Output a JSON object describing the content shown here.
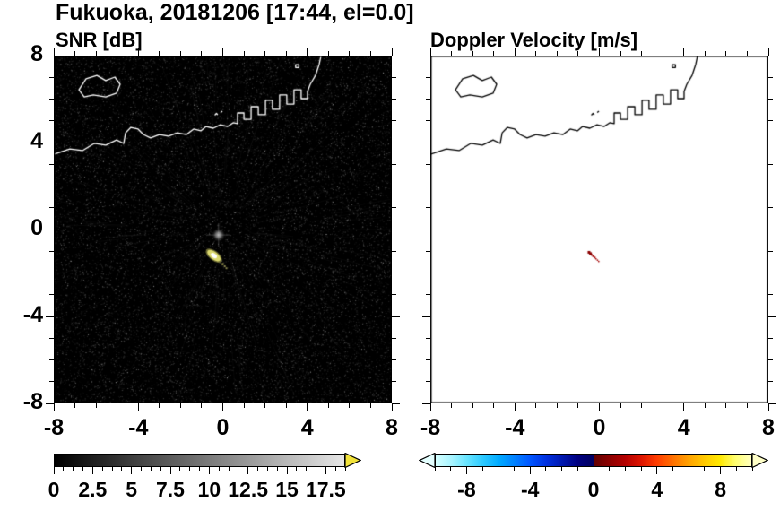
{
  "title": "Fukuoka, 20181206 [17:44, el=0.0]",
  "panels": {
    "snr": {
      "title": "SNR [dB]"
    },
    "velocity": {
      "title": "Doppler Velocity [m/s]"
    }
  },
  "axes": {
    "xlim": [
      -8,
      8
    ],
    "ylim": [
      -8,
      8
    ],
    "xtick_values": [
      -8,
      -4,
      0,
      4,
      8
    ],
    "xtick_labels": [
      "-8",
      "-4",
      "0",
      "4",
      "8"
    ],
    "ytick_values": [
      -8,
      -4,
      0,
      4,
      8
    ],
    "ytick_labels": [
      "-8",
      "-4",
      "0",
      "4",
      "8"
    ],
    "minor_step": 1
  },
  "colorbars": {
    "snr": {
      "min": 0,
      "max": 17.5,
      "tick_values": [
        0,
        2.5,
        5,
        7.5,
        10,
        12.5,
        15,
        17.5
      ],
      "tick_labels": [
        "0",
        "2.5",
        "5",
        "7.5",
        "10",
        "12.5",
        "15",
        "17.5"
      ],
      "minor_step": 0.625,
      "colors": [
        [
          "0%",
          "#000000"
        ],
        [
          "100%",
          "#e6e6e6"
        ]
      ],
      "arrow_right_color": "#f2e33a"
    },
    "velocity": {
      "min": -10,
      "max": 10,
      "tick_values": [
        -8,
        -4,
        0,
        4,
        8
      ],
      "tick_labels": [
        "-8",
        "-4",
        "0",
        "4",
        "8"
      ],
      "minor_step": 1,
      "colors": [
        [
          "0%",
          "#d4ffff"
        ],
        [
          "5%",
          "#a8f4ff"
        ],
        [
          "10%",
          "#66e4ff"
        ],
        [
          "15%",
          "#2cc9ff"
        ],
        [
          "20%",
          "#00aaff"
        ],
        [
          "25%",
          "#0080ff"
        ],
        [
          "30%",
          "#0055ff"
        ],
        [
          "35%",
          "#0030e0"
        ],
        [
          "40%",
          "#0018b0"
        ],
        [
          "45%",
          "#000080"
        ],
        [
          "50%",
          "#000060"
        ],
        [
          "50%",
          "#600000"
        ],
        [
          "55%",
          "#8b0000"
        ],
        [
          "60%",
          "#b40000"
        ],
        [
          "65%",
          "#dc1400"
        ],
        [
          "70%",
          "#ff3c00"
        ],
        [
          "75%",
          "#ff6e00"
        ],
        [
          "80%",
          "#ffa000"
        ],
        [
          "85%",
          "#ffc800"
        ],
        [
          "90%",
          "#ffe800"
        ],
        [
          "95%",
          "#ffff70"
        ],
        [
          "100%",
          "#ffffc0"
        ]
      ],
      "arrow_left_color": "#e4ffff",
      "arrow_right_color": "#ffffc8"
    }
  },
  "coastline": {
    "segments": [
      {
        "name": "mainland",
        "closed": false,
        "points": [
          [
            -8.0,
            3.46
          ],
          [
            -7.24,
            3.71
          ],
          [
            -6.64,
            3.63
          ],
          [
            -6.09,
            3.96
          ],
          [
            -5.54,
            3.88
          ],
          [
            -5.03,
            4.12
          ],
          [
            -4.69,
            3.96
          ],
          [
            -4.6,
            4.45
          ],
          [
            -4.35,
            4.7
          ],
          [
            -4.01,
            4.62
          ],
          [
            -3.76,
            4.37
          ],
          [
            -3.42,
            4.21
          ],
          [
            -3.0,
            4.37
          ],
          [
            -2.57,
            4.29
          ],
          [
            -2.15,
            4.45
          ],
          [
            -1.72,
            4.37
          ],
          [
            -1.38,
            4.62
          ],
          [
            -1.04,
            4.54
          ],
          [
            -0.79,
            4.74
          ],
          [
            -0.45,
            4.66
          ],
          [
            -0.11,
            4.82
          ],
          [
            0.23,
            4.74
          ],
          [
            0.49,
            4.91
          ],
          [
            0.7,
            4.87
          ],
          [
            0.7,
            5.36
          ],
          [
            1.0,
            5.36
          ],
          [
            1.0,
            5.07
          ],
          [
            1.34,
            5.07
          ],
          [
            1.34,
            5.65
          ],
          [
            1.68,
            5.65
          ],
          [
            1.68,
            5.28
          ],
          [
            2.02,
            5.28
          ],
          [
            2.02,
            5.94
          ],
          [
            2.35,
            5.94
          ],
          [
            2.35,
            5.53
          ],
          [
            2.69,
            5.53
          ],
          [
            2.69,
            6.19
          ],
          [
            3.03,
            6.19
          ],
          [
            3.03,
            5.77
          ],
          [
            3.37,
            5.77
          ],
          [
            3.37,
            6.43
          ],
          [
            3.71,
            6.43
          ],
          [
            3.71,
            6.02
          ],
          [
            4.01,
            6.02
          ],
          [
            4.01,
            6.35
          ],
          [
            4.14,
            6.68
          ],
          [
            4.39,
            7.09
          ],
          [
            4.56,
            7.59
          ],
          [
            4.65,
            8.0
          ]
        ]
      },
      {
        "name": "island-northwest",
        "closed": true,
        "points": [
          [
            -6.81,
            6.43
          ],
          [
            -6.47,
            6.93
          ],
          [
            -5.96,
            7.09
          ],
          [
            -5.54,
            6.85
          ],
          [
            -5.11,
            7.01
          ],
          [
            -4.86,
            6.68
          ],
          [
            -5.03,
            6.27
          ],
          [
            -5.54,
            6.1
          ],
          [
            -6.13,
            6.19
          ],
          [
            -6.56,
            6.1
          ]
        ]
      },
      {
        "name": "islet-1",
        "closed": false,
        "points": [
          [
            -0.38,
            5.26
          ],
          [
            -0.3,
            5.34
          ],
          [
            -0.24,
            5.28
          ]
        ]
      },
      {
        "name": "islet-2",
        "closed": false,
        "points": [
          [
            -0.1,
            5.38
          ],
          [
            -0.02,
            5.44
          ]
        ]
      },
      {
        "name": "harbor-mark",
        "closed": true,
        "points": [
          [
            3.45,
            7.45
          ],
          [
            3.6,
            7.45
          ],
          [
            3.6,
            7.58
          ],
          [
            3.45,
            7.58
          ]
        ]
      }
    ]
  },
  "chart_data": [
    {
      "type": "heatmap",
      "panel": "left",
      "title": "SNR [dB]",
      "units": "dB",
      "xlim": [
        -8,
        8
      ],
      "ylim": [
        -8,
        8
      ],
      "xticks": [
        -8,
        -4,
        0,
        4,
        8
      ],
      "yticks": [
        -8,
        -4,
        0,
        4,
        8
      ],
      "colorbar": {
        "min": 0,
        "max": 17.5,
        "ticks": [
          0,
          2.5,
          5,
          7.5,
          10,
          12.5,
          15,
          17.5
        ],
        "colormap": "grayscale black-to-white with yellow over-range arrow"
      },
      "background": "receiver noise speckle near 0-3 dB on black",
      "overlays": [
        "coastline (white)"
      ],
      "features": [
        {
          "name": "radar-origin-echo",
          "x": -0.2,
          "y": -0.25,
          "snr_db": 8,
          "appearance": "diffuse gray blob at radar origin"
        },
        {
          "name": "target-echo-streak",
          "center": [
            -0.42,
            -1.2
          ],
          "angle_deg": 38,
          "length": 0.75,
          "width": 0.22,
          "snr_db": 17,
          "appearance": "bright white-yellow streak"
        },
        {
          "name": "echo-trail-dots",
          "points": [
            [
              -0.05,
              -1.55
            ],
            [
              0.05,
              -1.65
            ],
            [
              0.13,
              -1.74
            ]
          ],
          "snr_db": 10
        }
      ]
    },
    {
      "type": "heatmap",
      "panel": "right",
      "title": "Doppler Velocity [m/s]",
      "units": "m/s",
      "xlim": [
        -8,
        8
      ],
      "ylim": [
        -8,
        8
      ],
      "xticks": [
        -8,
        -4,
        0,
        4,
        8
      ],
      "yticks": [
        -8,
        -4,
        0,
        4,
        8
      ],
      "colorbar": {
        "min": -10,
        "max": 10,
        "ticks": [
          -8,
          -4,
          0,
          4,
          8
        ],
        "colormap": "cyan/blue negative to dark-red/yellow positive"
      },
      "background": "white (no echo / below threshold)",
      "overlays": [
        "coastline (black)"
      ],
      "features": [
        {
          "name": "target-echo-dots",
          "points": [
            [
              -0.49,
              -1.05
            ],
            [
              -0.42,
              -1.11
            ],
            [
              -0.36,
              -1.17
            ],
            [
              -0.29,
              -1.23
            ],
            [
              -0.22,
              -1.29
            ],
            [
              -0.16,
              -1.35
            ],
            [
              -0.09,
              -1.41
            ],
            [
              -0.03,
              -1.47
            ]
          ],
          "velocity_mps": 1.5,
          "appearance": "dark red specks"
        }
      ]
    }
  ]
}
